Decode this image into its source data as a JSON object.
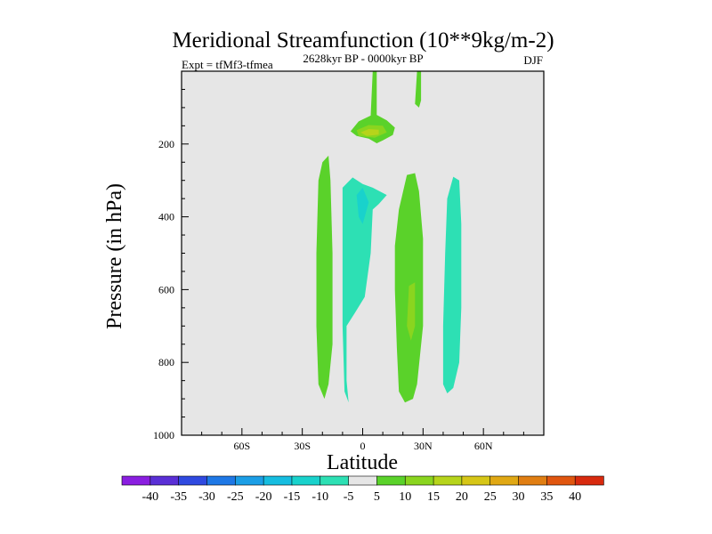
{
  "chart_data": {
    "type": "contour",
    "title": "Meridional Streamfunction (10**9kg/m-2)",
    "left_label": "Expt = tfMf3-tfmea",
    "center_label": "2628kyr BP - 0000kyr BP",
    "right_label": "DJF",
    "xlabel": "Latitude",
    "ylabel": "Pressure (in hPa)",
    "xlim": [
      -90,
      90
    ],
    "ylim": [
      0,
      1000
    ],
    "y_inverted": true,
    "x_ticks": [
      {
        "value": -60,
        "label": "60S"
      },
      {
        "value": -30,
        "label": "30S"
      },
      {
        "value": 0,
        "label": "0"
      },
      {
        "value": 30,
        "label": "30N"
      },
      {
        "value": 60,
        "label": "60N"
      }
    ],
    "y_ticks": [
      {
        "value": 200,
        "label": "200"
      },
      {
        "value": 400,
        "label": "400"
      },
      {
        "value": 600,
        "label": "600"
      },
      {
        "value": 800,
        "label": "800"
      },
      {
        "value": 1000,
        "label": "1000"
      }
    ],
    "contour_levels": [
      -40,
      -35,
      -30,
      -25,
      -20,
      -15,
      -10,
      -5,
      5,
      10,
      15,
      20,
      25,
      30,
      35,
      40
    ],
    "colorbar_colors": [
      "#8a1ee0",
      "#5a2fd6",
      "#2f49e0",
      "#1e78e6",
      "#1b9ee6",
      "#16bde0",
      "#19d2cc",
      "#2de0b4",
      "#e6e6e6",
      "#5ad22a",
      "#8ad51f",
      "#b6d41b",
      "#d6c617",
      "#e0a814",
      "#e07e12",
      "#e0560f",
      "#d82a0e"
    ],
    "background_level_color": "#e6e6e6",
    "regions": [
      {
        "level": "5 to 10",
        "color": "#5ad22a",
        "points": [
          [
            5,
            0
          ],
          [
            7,
            0
          ],
          [
            7,
            120
          ],
          [
            12,
            135
          ],
          [
            16,
            155
          ],
          [
            15,
            175
          ],
          [
            10,
            190
          ],
          [
            7,
            198
          ],
          [
            3,
            185
          ],
          [
            -3,
            178
          ],
          [
            -6,
            165
          ],
          [
            -2,
            138
          ],
          [
            4,
            122
          ]
        ]
      },
      {
        "level": "10 to 15",
        "color": "#8ad51f",
        "points": [
          [
            -3,
            162
          ],
          [
            3,
            148
          ],
          [
            10,
            150
          ],
          [
            12,
            168
          ],
          [
            6,
            183
          ],
          [
            -2,
            178
          ]
        ]
      },
      {
        "level": "15 to 20",
        "color": "#b6d41b",
        "points": [
          [
            -1,
            168
          ],
          [
            3,
            159
          ],
          [
            8,
            161
          ],
          [
            8,
            174
          ],
          [
            2,
            178
          ]
        ]
      },
      {
        "level": "5 to 10",
        "color": "#5ad22a",
        "points": [
          [
            27,
            0
          ],
          [
            29,
            0
          ],
          [
            29,
            80
          ],
          [
            28,
            100
          ],
          [
            26,
            90
          ]
        ]
      },
      {
        "level": "5 to 10",
        "color": "#5ad22a",
        "points": [
          [
            -20,
            250
          ],
          [
            -17,
            232
          ],
          [
            -16,
            300
          ],
          [
            -15,
            500
          ],
          [
            -15,
            750
          ],
          [
            -17,
            860
          ],
          [
            -19,
            900
          ],
          [
            -22,
            860
          ],
          [
            -23,
            700
          ],
          [
            -23,
            500
          ],
          [
            -22,
            300
          ]
        ]
      },
      {
        "level": "-10 to -5",
        "color": "#2de0b4",
        "points": [
          [
            -5,
            292
          ],
          [
            0,
            310
          ],
          [
            5,
            320
          ],
          [
            12,
            340
          ],
          [
            8,
            365
          ],
          [
            5,
            380
          ],
          [
            4,
            500
          ],
          [
            1,
            620
          ],
          [
            -4,
            665
          ],
          [
            -8,
            700
          ],
          [
            -8,
            850
          ],
          [
            -7,
            910
          ],
          [
            -9,
            880
          ],
          [
            -10,
            700
          ],
          [
            -10,
            500
          ],
          [
            -10,
            320
          ]
        ]
      },
      {
        "level": "-15 to -10",
        "color": "#19d2cc",
        "points": [
          [
            -3,
            340
          ],
          [
            0,
            320
          ],
          [
            3,
            360
          ],
          [
            1,
            400
          ],
          [
            0,
            420
          ],
          [
            -2,
            400
          ]
        ]
      },
      {
        "level": "5 to 10",
        "color": "#5ad22a",
        "points": [
          [
            22,
            285
          ],
          [
            26,
            280
          ],
          [
            28,
            330
          ],
          [
            30,
            460
          ],
          [
            30,
            700
          ],
          [
            27,
            860
          ],
          [
            25,
            900
          ],
          [
            21,
            910
          ],
          [
            18,
            880
          ],
          [
            17,
            760
          ],
          [
            16,
            600
          ],
          [
            16,
            480
          ],
          [
            18,
            380
          ]
        ]
      },
      {
        "level": "10 to 15",
        "color": "#8ad51f",
        "points": [
          [
            23,
            590
          ],
          [
            26,
            580
          ],
          [
            26,
            700
          ],
          [
            24,
            740
          ],
          [
            22,
            700
          ]
        ]
      },
      {
        "level": "-10 to -5",
        "color": "#2de0b4",
        "points": [
          [
            45,
            290
          ],
          [
            48,
            300
          ],
          [
            49,
            420
          ],
          [
            49,
            650
          ],
          [
            48,
            800
          ],
          [
            45,
            870
          ],
          [
            42,
            885
          ],
          [
            40,
            860
          ],
          [
            40,
            700
          ],
          [
            41,
            500
          ],
          [
            42,
            350
          ]
        ]
      }
    ]
  }
}
